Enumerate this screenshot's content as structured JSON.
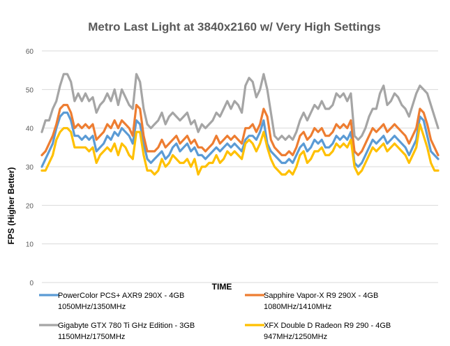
{
  "chart_data": {
    "type": "line",
    "title": "Metro Last Light at 3840x2160 w/ Very High Settings",
    "xlabel": "TIME",
    "ylabel": "FPS (Higher Better)",
    "ylim": [
      0,
      60
    ],
    "yticks": [
      "0",
      "10",
      "20",
      "30",
      "40",
      "50",
      "60"
    ],
    "grid": true,
    "legend_position": "bottom",
    "series": [
      {
        "name": "PowerColor PCS+ AXR9 290X - 4GB",
        "name_line2": "1050MHz/1350MHz",
        "color": "#5B9BD5",
        "values": [
          30,
          32,
          34,
          36,
          40,
          43,
          44,
          44,
          42,
          38,
          38,
          37,
          38,
          37,
          38,
          34,
          35,
          36,
          38,
          37,
          39,
          38,
          40,
          39,
          38,
          36,
          42,
          41,
          36,
          32,
          31,
          32,
          33,
          34,
          32,
          33,
          35,
          36,
          34,
          35,
          36,
          34,
          35,
          33,
          33,
          32,
          33,
          34,
          35,
          34,
          35,
          36,
          35,
          36,
          35,
          34,
          37,
          38,
          38,
          37,
          39,
          42,
          36,
          34,
          33,
          32,
          31,
          31,
          32,
          31,
          33,
          35,
          36,
          34,
          35,
          37,
          36,
          37,
          35,
          35,
          36,
          38,
          37,
          38,
          37,
          39,
          31,
          30,
          31,
          33,
          35,
          37,
          36,
          37,
          38,
          36,
          37,
          38,
          37,
          36,
          35,
          33,
          35,
          37,
          43,
          42,
          38,
          34,
          33,
          32
        ]
      },
      {
        "name": "Sapphire Vapor-X R9 290X - 4GB",
        "name_line2": "1080MHz/1410MHz",
        "color": "#ED7D31",
        "values": [
          33,
          34,
          36,
          38,
          41,
          45,
          46,
          46,
          44,
          40,
          41,
          40,
          41,
          40,
          41,
          37,
          38,
          39,
          41,
          40,
          42,
          40,
          42,
          41,
          40,
          38,
          46,
          45,
          38,
          34,
          34,
          34,
          35,
          37,
          35,
          36,
          37,
          38,
          36,
          37,
          38,
          36,
          37,
          35,
          35,
          34,
          35,
          36,
          38,
          36,
          37,
          38,
          37,
          38,
          37,
          36,
          40,
          40,
          41,
          39,
          41,
          45,
          43,
          37,
          35,
          34,
          33,
          33,
          34,
          33,
          35,
          38,
          39,
          37,
          38,
          40,
          39,
          40,
          38,
          38,
          39,
          41,
          40,
          41,
          40,
          42,
          34,
          33,
          34,
          36,
          38,
          40,
          39,
          40,
          41,
          39,
          40,
          41,
          40,
          39,
          38,
          36,
          38,
          40,
          45,
          44,
          41,
          37,
          35,
          33
        ]
      },
      {
        "name": "Gigabyte GTX 780 Ti GHz Edition - 3GB",
        "name_line2": "1150MHz/1750MHz",
        "color": "#A5A5A5",
        "values": [
          39,
          42,
          42,
          45,
          47,
          51,
          54,
          54,
          52,
          47,
          49,
          47,
          49,
          47,
          48,
          44,
          46,
          47,
          49,
          47,
          50,
          46,
          50,
          48,
          46,
          45,
          54,
          52,
          45,
          41,
          40,
          41,
          42,
          44,
          41,
          43,
          44,
          43,
          42,
          43,
          44,
          41,
          42,
          39,
          41,
          40,
          41,
          42,
          44,
          43,
          45,
          47,
          45,
          47,
          46,
          44,
          51,
          53,
          52,
          48,
          50,
          54,
          50,
          44,
          38,
          37,
          38,
          37,
          38,
          37,
          39,
          42,
          44,
          42,
          44,
          46,
          45,
          47,
          45,
          45,
          46,
          49,
          48,
          49,
          47,
          49,
          38,
          37,
          38,
          40,
          43,
          45,
          45,
          49,
          51,
          46,
          47,
          49,
          48,
          46,
          45,
          43,
          46,
          49,
          51,
          50,
          49,
          46,
          43,
          40
        ]
      },
      {
        "name": "XFX Double D Radeon R9 290 - 4GB",
        "name_line2": "947MHz/1250MHz",
        "color": "#FFC000",
        "values": [
          29,
          29,
          31,
          33,
          37,
          39,
          40,
          40,
          39,
          35,
          35,
          35,
          35,
          34,
          35,
          31,
          33,
          34,
          35,
          34,
          36,
          33,
          36,
          35,
          33,
          32,
          39,
          39,
          33,
          29,
          29,
          28,
          29,
          32,
          30,
          31,
          33,
          32,
          31,
          31,
          32,
          30,
          32,
          28,
          30,
          30,
          31,
          31,
          33,
          31,
          32,
          34,
          33,
          34,
          33,
          32,
          36,
          37,
          36,
          34,
          36,
          39,
          35,
          32,
          30,
          29,
          28,
          28,
          29,
          28,
          30,
          33,
          34,
          31,
          32,
          34,
          34,
          35,
          33,
          33,
          34,
          36,
          35,
          36,
          35,
          37,
          30,
          28,
          29,
          31,
          33,
          35,
          34,
          35,
          36,
          34,
          35,
          36,
          35,
          34,
          33,
          31,
          33,
          35,
          41,
          38,
          35,
          31,
          29,
          29
        ]
      }
    ]
  }
}
